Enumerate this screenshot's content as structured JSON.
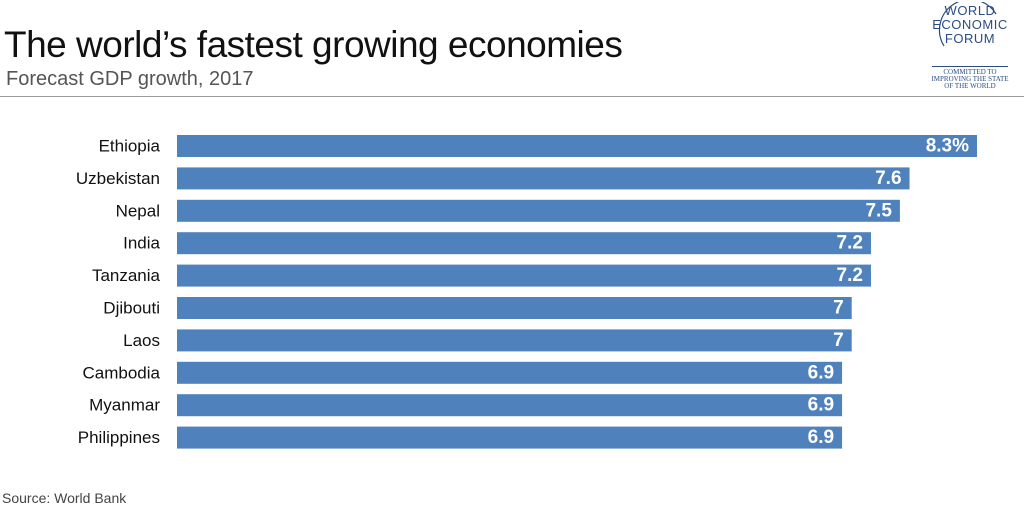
{
  "header": {
    "title": "The world’s fastest growing economies",
    "subtitle": "Forecast GDP growth, 2017"
  },
  "logo": {
    "lines": [
      "WORLD",
      "ECONOMIC",
      "FORUM"
    ],
    "tagline": [
      "COMMITTED TO",
      "IMPROVING THE STATE",
      "OF THE WORLD"
    ],
    "color": "#2b4d82"
  },
  "chart_data": {
    "type": "bar",
    "orientation": "horizontal",
    "categories": [
      "Ethiopia",
      "Uzbekistan",
      "Nepal",
      "India",
      "Tanzania",
      "Djibouti",
      "Laos",
      "Cambodia",
      "Myanmar",
      "Philippines"
    ],
    "values": [
      8.3,
      7.6,
      7.5,
      7.2,
      7.2,
      7,
      7,
      6.9,
      6.9,
      6.9
    ],
    "value_labels": [
      "8.3%",
      "7.6",
      "7.5",
      "7.2",
      "7.2",
      "7",
      "7",
      "6.9",
      "6.9",
      "6.9"
    ],
    "title": "The world’s fastest growing economies",
    "subtitle": "Forecast GDP growth, 2017",
    "xlim": [
      0,
      8.3
    ],
    "grid": false,
    "bar_color": "#4f81bd",
    "label_color": "#ffffff"
  },
  "footer": {
    "source": "Source: World Bank"
  }
}
